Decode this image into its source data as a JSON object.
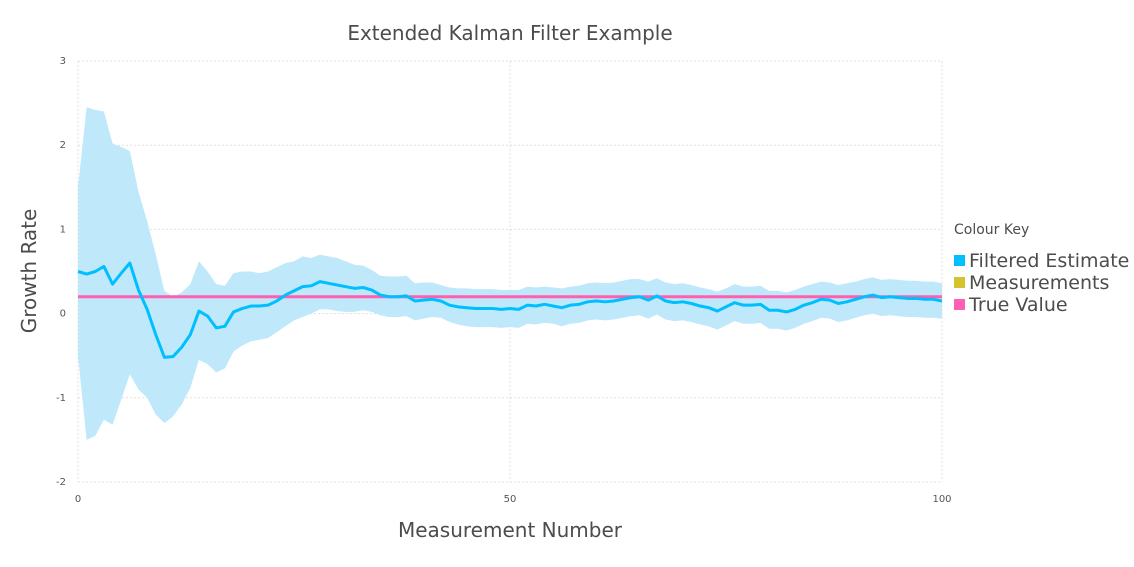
{
  "chart_data": {
    "type": "line",
    "title": "Extended Kalman Filter Example",
    "xlabel": "Measurement Number",
    "ylabel": "Growth Rate",
    "xlim": [
      0,
      100
    ],
    "ylim": [
      -2,
      3
    ],
    "xticks": [
      0,
      50,
      100
    ],
    "yticks": [
      -2,
      -1,
      0,
      1,
      2,
      3
    ],
    "grid": true,
    "legend": {
      "title": "Colour Key",
      "position": "right",
      "entries": [
        {
          "label": "Filtered Estimate",
          "color": "#00bfff"
        },
        {
          "label": "Measurements",
          "color": "#d4c22e"
        },
        {
          "label": "True Value",
          "color": "#ff5fb0"
        }
      ]
    },
    "colors": {
      "estimate": "#00bfff",
      "band": "#bfe8fb",
      "true_value": "#ff5fb0",
      "grid": "#e0e0e0"
    },
    "series": [
      {
        "name": "Filtered Estimate",
        "x": [
          0,
          1,
          2,
          3,
          4,
          5,
          6,
          7,
          8,
          9,
          10,
          11,
          12,
          13,
          14,
          15,
          16,
          17,
          18,
          19,
          20,
          21,
          22,
          23,
          24,
          25,
          26,
          27,
          28,
          29,
          30,
          31,
          32,
          33,
          34,
          35,
          36,
          37,
          38,
          39,
          40,
          41,
          42,
          43,
          44,
          45,
          46,
          47,
          48,
          49,
          50,
          51,
          52,
          53,
          54,
          55,
          56,
          57,
          58,
          59,
          60,
          61,
          62,
          63,
          64,
          65,
          66,
          67,
          68,
          69,
          70,
          71,
          72,
          73,
          74,
          75,
          76,
          77,
          78,
          79,
          80,
          81,
          82,
          83,
          84,
          85,
          86,
          87,
          88,
          89,
          90,
          91,
          92,
          93,
          94,
          95,
          96,
          97,
          98,
          99,
          100
        ],
        "y": [
          0.5,
          0.47,
          0.5,
          0.56,
          0.35,
          0.48,
          0.6,
          0.28,
          0.05,
          -0.25,
          -0.52,
          -0.51,
          -0.4,
          -0.25,
          0.03,
          -0.03,
          -0.17,
          -0.15,
          0.02,
          0.06,
          0.09,
          0.09,
          0.1,
          0.15,
          0.22,
          0.27,
          0.32,
          0.33,
          0.38,
          0.36,
          0.34,
          0.32,
          0.3,
          0.31,
          0.28,
          0.22,
          0.2,
          0.2,
          0.21,
          0.15,
          0.16,
          0.17,
          0.15,
          0.1,
          0.08,
          0.07,
          0.06,
          0.06,
          0.06,
          0.05,
          0.06,
          0.05,
          0.1,
          0.09,
          0.11,
          0.09,
          0.07,
          0.1,
          0.11,
          0.14,
          0.15,
          0.14,
          0.15,
          0.17,
          0.19,
          0.2,
          0.16,
          0.21,
          0.15,
          0.13,
          0.14,
          0.12,
          0.09,
          0.07,
          0.03,
          0.08,
          0.13,
          0.1,
          0.1,
          0.11,
          0.04,
          0.04,
          0.02,
          0.05,
          0.1,
          0.13,
          0.17,
          0.16,
          0.12,
          0.14,
          0.17,
          0.2,
          0.22,
          0.19,
          0.2,
          0.19,
          0.18,
          0.18,
          0.17,
          0.17,
          0.15
        ]
      },
      {
        "name": "upper",
        "x": [
          0,
          1,
          2,
          3,
          4,
          5,
          6,
          7,
          8,
          9,
          10,
          11,
          12,
          13,
          14,
          15,
          16,
          17,
          18,
          19,
          20,
          21,
          22,
          23,
          24,
          25,
          26,
          27,
          28,
          29,
          30,
          31,
          32,
          33,
          34,
          35,
          36,
          37,
          38,
          39,
          40,
          41,
          42,
          43,
          44,
          45,
          46,
          47,
          48,
          49,
          50,
          51,
          52,
          53,
          54,
          55,
          56,
          57,
          58,
          59,
          60,
          61,
          62,
          63,
          64,
          65,
          66,
          67,
          68,
          69,
          70,
          71,
          72,
          73,
          74,
          75,
          76,
          77,
          78,
          79,
          80,
          81,
          82,
          83,
          84,
          85,
          86,
          87,
          88,
          89,
          90,
          91,
          92,
          93,
          94,
          95,
          96,
          97,
          98,
          99,
          100
        ],
        "y": [
          1.5,
          2.45,
          2.42,
          2.4,
          2.02,
          1.98,
          1.93,
          1.45,
          1.1,
          0.7,
          0.27,
          0.2,
          0.25,
          0.35,
          0.62,
          0.5,
          0.35,
          0.33,
          0.48,
          0.5,
          0.5,
          0.48,
          0.5,
          0.55,
          0.6,
          0.62,
          0.68,
          0.66,
          0.7,
          0.68,
          0.66,
          0.62,
          0.58,
          0.57,
          0.52,
          0.45,
          0.44,
          0.44,
          0.45,
          0.36,
          0.37,
          0.37,
          0.34,
          0.31,
          0.3,
          0.3,
          0.29,
          0.29,
          0.29,
          0.28,
          0.28,
          0.28,
          0.32,
          0.31,
          0.32,
          0.31,
          0.3,
          0.32,
          0.33,
          0.36,
          0.37,
          0.36,
          0.37,
          0.39,
          0.41,
          0.41,
          0.38,
          0.42,
          0.37,
          0.35,
          0.36,
          0.34,
          0.31,
          0.29,
          0.26,
          0.3,
          0.35,
          0.32,
          0.32,
          0.33,
          0.27,
          0.27,
          0.25,
          0.28,
          0.32,
          0.35,
          0.38,
          0.37,
          0.34,
          0.36,
          0.38,
          0.41,
          0.43,
          0.4,
          0.41,
          0.4,
          0.39,
          0.39,
          0.38,
          0.38,
          0.36
        ]
      },
      {
        "name": "lower",
        "x": [
          0,
          1,
          2,
          3,
          4,
          5,
          6,
          7,
          8,
          9,
          10,
          11,
          12,
          13,
          14,
          15,
          16,
          17,
          18,
          19,
          20,
          21,
          22,
          23,
          24,
          25,
          26,
          27,
          28,
          29,
          30,
          31,
          32,
          33,
          34,
          35,
          36,
          37,
          38,
          39,
          40,
          41,
          42,
          43,
          44,
          45,
          46,
          47,
          48,
          49,
          50,
          51,
          52,
          53,
          54,
          55,
          56,
          57,
          58,
          59,
          60,
          61,
          62,
          63,
          64,
          65,
          66,
          67,
          68,
          69,
          70,
          71,
          72,
          73,
          74,
          75,
          76,
          77,
          78,
          79,
          80,
          81,
          82,
          83,
          84,
          85,
          86,
          87,
          88,
          89,
          90,
          91,
          92,
          93,
          94,
          95,
          96,
          97,
          98,
          99,
          100
        ],
        "y": [
          -0.5,
          -1.5,
          -1.45,
          -1.26,
          -1.32,
          -1.02,
          -0.72,
          -0.9,
          -1.0,
          -1.2,
          -1.3,
          -1.22,
          -1.08,
          -0.88,
          -0.55,
          -0.6,
          -0.7,
          -0.65,
          -0.45,
          -0.38,
          -0.33,
          -0.31,
          -0.29,
          -0.22,
          -0.15,
          -0.08,
          -0.04,
          0.0,
          0.05,
          0.05,
          0.03,
          0.02,
          0.02,
          0.04,
          0.02,
          -0.02,
          -0.04,
          -0.04,
          -0.03,
          -0.08,
          -0.06,
          -0.04,
          -0.05,
          -0.1,
          -0.13,
          -0.15,
          -0.16,
          -0.16,
          -0.16,
          -0.17,
          -0.16,
          -0.17,
          -0.12,
          -0.13,
          -0.11,
          -0.12,
          -0.15,
          -0.12,
          -0.11,
          -0.08,
          -0.07,
          -0.08,
          -0.07,
          -0.05,
          -0.03,
          -0.02,
          -0.06,
          -0.01,
          -0.07,
          -0.09,
          -0.08,
          -0.1,
          -0.13,
          -0.15,
          -0.19,
          -0.14,
          -0.09,
          -0.12,
          -0.12,
          -0.11,
          -0.18,
          -0.18,
          -0.2,
          -0.17,
          -0.12,
          -0.09,
          -0.05,
          -0.06,
          -0.1,
          -0.08,
          -0.05,
          -0.02,
          0.0,
          -0.03,
          -0.02,
          -0.03,
          -0.04,
          -0.04,
          -0.05,
          -0.05,
          -0.06
        ]
      },
      {
        "name": "True Value",
        "x": [
          0,
          100
        ],
        "y": [
          0.2,
          0.2
        ]
      }
    ]
  }
}
